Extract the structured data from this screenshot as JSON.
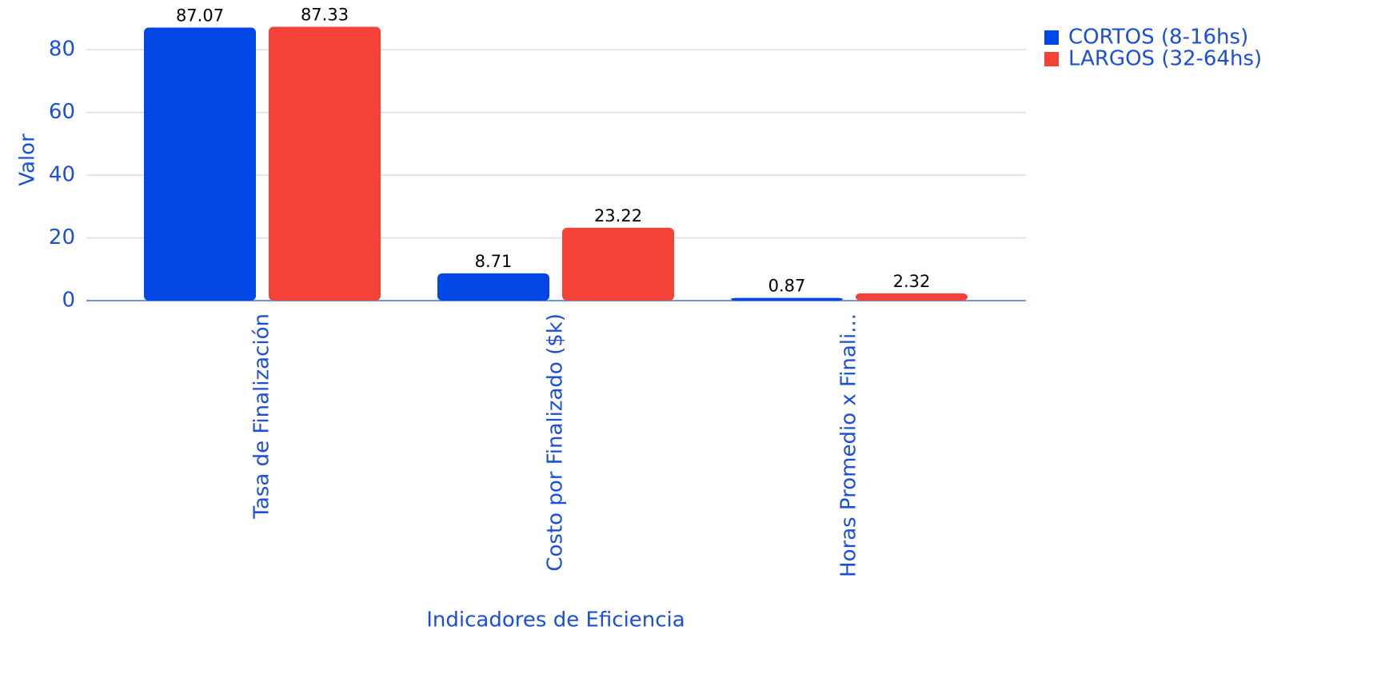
{
  "chart_data": {
    "type": "bar",
    "categories": [
      "Tasa de Finalización",
      "Costo por Finalizado ($k)",
      "Horas Promedio x Finali..."
    ],
    "series": [
      {
        "name": "CORTOS (8-16hs)",
        "color": "#0047e6",
        "values": [
          87.07,
          8.71,
          0.87
        ]
      },
      {
        "name": "LARGOS (32-64hs)",
        "color": "#f44336",
        "values": [
          87.33,
          23.22,
          2.32
        ]
      }
    ],
    "x_label": "Indicadores de Eficiencia",
    "y_label": "Valor",
    "ylim": [
      0,
      90
    ],
    "yticks": [
      0,
      20,
      40,
      60,
      80
    ],
    "grid": true,
    "legend": "top-right"
  }
}
